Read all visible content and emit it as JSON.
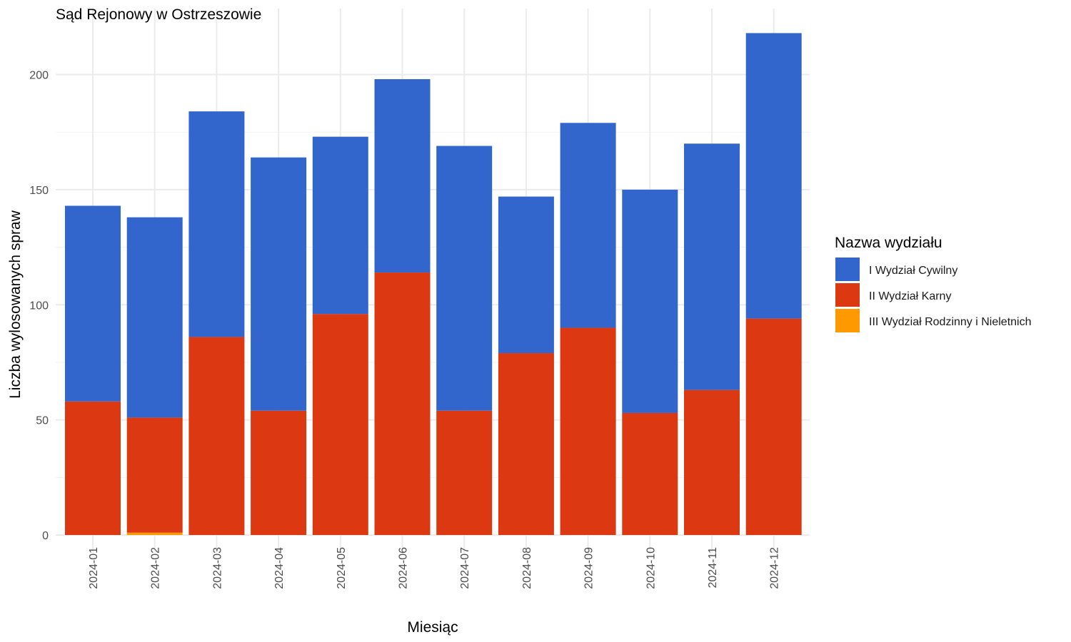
{
  "chart_data": {
    "type": "bar",
    "stacked": true,
    "title": "Sąd Rejonowy w Ostrzeszowie",
    "xlabel": "Miesiąc",
    "ylabel": "Liczba wylosowanych spraw",
    "ylim": [
      0,
      225
    ],
    "yticks": [
      0,
      50,
      100,
      150,
      200
    ],
    "grid": true,
    "categories": [
      "2024-01",
      "2024-02",
      "2024-03",
      "2024-04",
      "2024-05",
      "2024-06",
      "2024-07",
      "2024-08",
      "2024-09",
      "2024-10",
      "2024-11",
      "2024-12"
    ],
    "legend": {
      "title": "Nazwa wydziału",
      "position": "right"
    },
    "series": [
      {
        "name": "III Wydział Rodzinny i Nieletnich",
        "color": "#FF9900",
        "values": [
          0,
          1,
          0,
          0,
          0,
          0,
          0,
          0,
          0,
          0,
          0,
          0
        ]
      },
      {
        "name": "II Wydział Karny",
        "color": "#DC3912",
        "values": [
          58,
          50,
          86,
          54,
          96,
          114,
          54,
          79,
          90,
          53,
          63,
          94
        ]
      },
      {
        "name": "I Wydział Cywilny",
        "color": "#3366CC",
        "values": [
          85,
          87,
          98,
          110,
          77,
          84,
          115,
          68,
          89,
          97,
          107,
          124
        ]
      }
    ],
    "legend_order": [
      "I Wydział Cywilny",
      "II Wydział Karny",
      "III Wydział Rodzinny i Nieletnich"
    ]
  }
}
